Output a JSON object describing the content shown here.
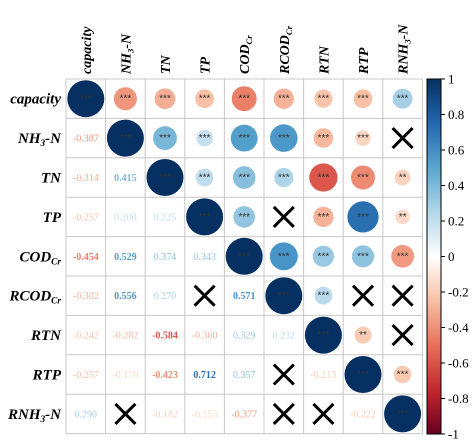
{
  "chart_data": {
    "type": "heatmap",
    "title": "",
    "variables": [
      {
        "base": "capacity",
        "sub": ""
      },
      {
        "base": "NH",
        "sub": "3",
        "tail": "-N"
      },
      {
        "base": "TN",
        "sub": ""
      },
      {
        "base": "TP",
        "sub": ""
      },
      {
        "base": "COD",
        "sub": "Cr"
      },
      {
        "base": "RCOD",
        "sub": "Cr"
      },
      {
        "base": "RTN",
        "sub": ""
      },
      {
        "base": "RTP",
        "sub": ""
      },
      {
        "base": "RNH",
        "sub": "3",
        "tail": "-N"
      }
    ],
    "upper_triangle": "circles sized and colored by correlation",
    "lower_triangle": "coefficients printed; X marks non-significant",
    "matrix": [
      [
        1.0,
        -0.387,
        -0.314,
        -0.257,
        -0.454,
        -0.302,
        -0.242,
        -0.257,
        0.29
      ],
      [
        -0.387,
        1.0,
        0.415,
        0.2,
        0.529,
        0.556,
        -0.282,
        -0.176,
        null
      ],
      [
        -0.314,
        0.415,
        1.0,
        0.225,
        0.374,
        0.27,
        -0.584,
        -0.423,
        -0.182
      ],
      [
        -0.257,
        0.2,
        0.225,
        1.0,
        0.343,
        null,
        -0.3,
        0.712,
        -0.153
      ],
      [
        -0.454,
        0.529,
        0.374,
        0.343,
        1.0,
        0.571,
        0.329,
        0.357,
        -0.377
      ],
      [
        -0.302,
        0.556,
        0.27,
        null,
        0.571,
        1.0,
        0.232,
        null,
        null
      ],
      [
        -0.242,
        -0.282,
        -0.584,
        -0.3,
        0.329,
        0.232,
        1.0,
        -0.213,
        null
      ],
      [
        -0.257,
        -0.176,
        -0.423,
        0.712,
        0.357,
        null,
        -0.213,
        1.0,
        -0.222
      ],
      [
        0.29,
        null,
        -0.182,
        -0.153,
        -0.377,
        null,
        null,
        -0.222,
        1.0
      ]
    ],
    "stars": [
      [
        "***",
        "***",
        "***",
        "***",
        "***",
        "***",
        "***",
        "***",
        "***"
      ],
      [
        "***",
        "***",
        "***",
        "***",
        "***",
        "***",
        "***",
        "***",
        ""
      ],
      [
        "***",
        "***",
        "***",
        "***",
        "***",
        "***",
        "***",
        "***",
        "**"
      ],
      [
        "***",
        "***",
        "***",
        "***",
        "***",
        "",
        "***",
        "***",
        "**"
      ],
      [
        "***",
        "***",
        "***",
        "***",
        "***",
        "***",
        "***",
        "***",
        "***"
      ],
      [
        "***",
        "***",
        "***",
        "",
        "***",
        "***",
        "***",
        "",
        ""
      ],
      [
        "***",
        "***",
        "***",
        "***",
        "***",
        "***",
        "***",
        "**",
        ""
      ],
      [
        "***",
        "***",
        "***",
        "***",
        "***",
        "",
        "**",
        "***",
        "***"
      ],
      [
        "***",
        "",
        "**",
        "**",
        "***",
        "",
        "",
        "***",
        "***"
      ]
    ],
    "colorbar": {
      "range": [
        -1,
        1
      ],
      "ticks": [
        "1",
        "0.8",
        "0.6",
        "0.4",
        "0.2",
        "0",
        "-0.2",
        "-0.4",
        "-0.6",
        "-0.8",
        "-1"
      ],
      "colors": {
        "neg1": "#67001f",
        "neg05": "#e8705a",
        "zero": "#ffffff",
        "pos05": "#59a6d0",
        "pos1": "#053061"
      }
    }
  }
}
